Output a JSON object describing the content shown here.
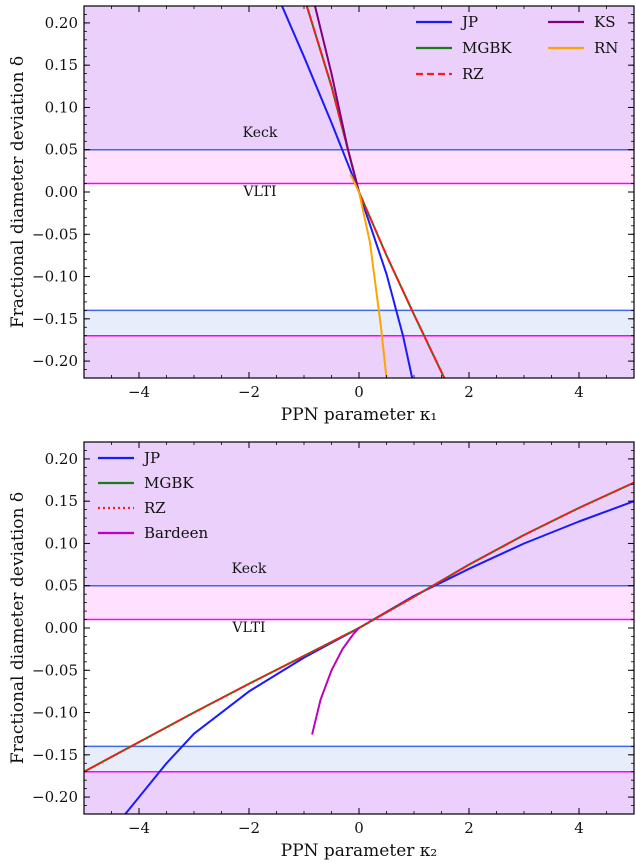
{
  "chart_data": [
    {
      "type": "line",
      "xlabel": "PPN parameter κ₁",
      "ylabel": "Fractional diameter deviation δ",
      "xlim": [
        -5,
        5
      ],
      "ylim": [
        -0.22,
        0.22
      ],
      "x_ticks": [
        -4,
        -2,
        0,
        2,
        4
      ],
      "x_tick_labels": [
        "−4",
        "−2",
        "0",
        "2",
        "4"
      ],
      "y_ticks": [
        -0.2,
        -0.15,
        -0.1,
        -0.05,
        0.0,
        0.05,
        0.1,
        0.15,
        0.2
      ],
      "y_tick_labels": [
        "−0.20",
        "−0.15",
        "−0.10",
        "−0.05",
        "0.00",
        "0.05",
        "0.10",
        "0.15",
        "0.20"
      ],
      "legend_position": "top-right",
      "legend_columns": 2,
      "series": [
        {
          "name": "JP",
          "color": "#1a1aff",
          "dash": "solid",
          "x": [
            -1.4,
            -1.0,
            -0.5,
            0.0,
            0.5,
            0.8,
            1.0
          ],
          "y": [
            0.22,
            0.16,
            0.082,
            0.0,
            -0.097,
            -0.17,
            -0.23
          ]
        },
        {
          "name": "MGBK",
          "color": "#1a7a1a",
          "dash": "solid",
          "x": [
            -0.95,
            -0.5,
            0.0,
            0.5,
            1.0,
            1.55
          ],
          "y": [
            0.22,
            0.125,
            0.0,
            -0.075,
            -0.145,
            -0.22
          ]
        },
        {
          "name": "RZ",
          "color": "#ff1a1a",
          "dash": "dashed",
          "x": [
            -0.95,
            -0.5,
            0.0,
            0.5,
            1.0,
            1.55
          ],
          "y": [
            0.22,
            0.125,
            0.0,
            -0.075,
            -0.145,
            -0.22
          ]
        },
        {
          "name": "KS",
          "color": "#800080",
          "dash": "solid",
          "x": [
            -0.8,
            -0.5,
            -0.2,
            0.0
          ],
          "y": [
            0.22,
            0.14,
            0.05,
            0.0
          ]
        },
        {
          "name": "RN",
          "color": "#ffa500",
          "dash": "solid",
          "x": [
            -0.15,
            0.0,
            0.2,
            0.4,
            0.5
          ],
          "y": [
            0.02,
            0.0,
            -0.06,
            -0.16,
            -0.22
          ]
        }
      ],
      "bands": [
        {
          "name": "Keck",
          "color": "#4169e1",
          "y_low": -0.14,
          "y_high": 0.05
        },
        {
          "name": "VLTI",
          "color": "#ff00ff",
          "y_low": -0.17,
          "y_high": 0.01
        }
      ],
      "annotations": [
        {
          "text": "Keck",
          "x": -1.8,
          "y": 0.065,
          "color": "#4169e1"
        },
        {
          "text": "VLTI",
          "x": -1.8,
          "y": -0.005,
          "color": "#dd00dd"
        }
      ]
    },
    {
      "type": "line",
      "xlabel": "PPN parameter κ₂",
      "ylabel": "Fractional diameter deviation δ",
      "xlim": [
        -5,
        5
      ],
      "ylim": [
        -0.22,
        0.22
      ],
      "x_ticks": [
        -4,
        -2,
        0,
        2,
        4
      ],
      "x_tick_labels": [
        "−4",
        "−2",
        "0",
        "2",
        "4"
      ],
      "y_ticks": [
        -0.2,
        -0.15,
        -0.1,
        -0.05,
        0.0,
        0.05,
        0.1,
        0.15,
        0.2
      ],
      "y_tick_labels": [
        "−0.20",
        "−0.15",
        "−0.10",
        "−0.05",
        "0.00",
        "0.05",
        "0.10",
        "0.15",
        "0.20"
      ],
      "legend_position": "top-left",
      "legend_columns": 1,
      "series": [
        {
          "name": "JP",
          "color": "#1a1aff",
          "dash": "solid",
          "x": [
            -4.25,
            -3.5,
            -3.0,
            -2.0,
            -1.0,
            0.0,
            1.0,
            2.0,
            3.0,
            4.0,
            5.0
          ],
          "y": [
            -0.22,
            -0.16,
            -0.125,
            -0.075,
            -0.035,
            0.0,
            0.038,
            0.07,
            0.1,
            0.126,
            0.15
          ]
        },
        {
          "name": "MGBK",
          "color": "#1a7a1a",
          "dash": "solid",
          "x": [
            -5.0,
            -4.0,
            -3.0,
            -2.0,
            -1.0,
            0.0,
            1.0,
            2.0,
            3.0,
            4.0,
            5.0
          ],
          "y": [
            -0.17,
            -0.135,
            -0.1,
            -0.066,
            -0.033,
            0.0,
            0.037,
            0.075,
            0.11,
            0.142,
            0.172
          ]
        },
        {
          "name": "RZ",
          "color": "#ff1a1a",
          "dash": "dotted",
          "x": [
            -5.0,
            -4.0,
            -3.0,
            -2.0,
            -1.0,
            0.0,
            1.0,
            2.0,
            3.0,
            4.0,
            5.0
          ],
          "y": [
            -0.17,
            -0.135,
            -0.1,
            -0.066,
            -0.033,
            0.0,
            0.037,
            0.075,
            0.11,
            0.142,
            0.172
          ]
        },
        {
          "name": "Bardeen",
          "color": "#c000c0",
          "dash": "solid",
          "x": [
            -0.85,
            -0.7,
            -0.5,
            -0.3,
            -0.1,
            0.0
          ],
          "y": [
            -0.125,
            -0.085,
            -0.05,
            -0.025,
            -0.007,
            0.0
          ]
        }
      ],
      "bands": [
        {
          "name": "Keck",
          "color": "#4169e1",
          "y_low": -0.14,
          "y_high": 0.05
        },
        {
          "name": "VLTI",
          "color": "#ff00ff",
          "y_low": -0.17,
          "y_high": 0.01
        }
      ],
      "annotations": [
        {
          "text": "Keck",
          "x": -2.0,
          "y": 0.065,
          "color": "#4169e1"
        },
        {
          "text": "VLTI",
          "x": -2.0,
          "y": -0.005,
          "color": "#dd00dd"
        }
      ]
    }
  ]
}
